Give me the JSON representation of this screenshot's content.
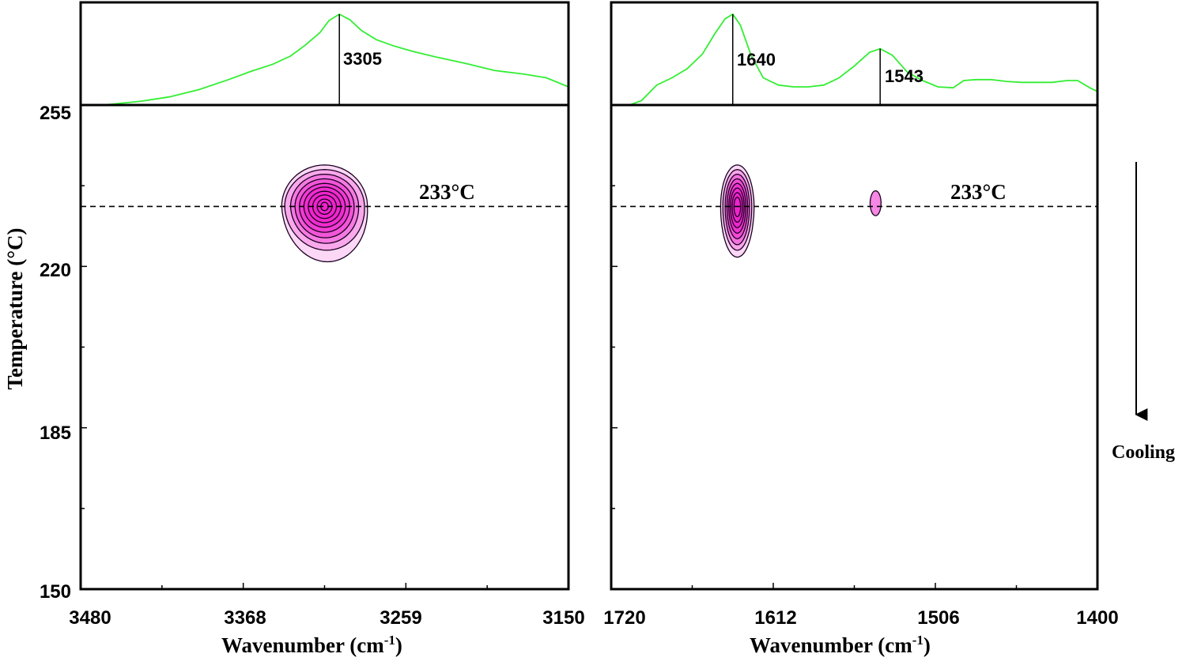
{
  "chart_data": [
    {
      "type": "contour",
      "panel": "left",
      "xlabel": "Wavenumber (cm",
      "xlabel_sup": "-1",
      "xlabel_tail": ")",
      "ylabel": "Temperature  (°C)",
      "xlim": [
        3480,
        3150
      ],
      "ylim": [
        150,
        255
      ],
      "x_ticks": [
        "3480",
        "3368",
        "3259",
        "3150"
      ],
      "y_ticks": [
        "255",
        "220",
        "185",
        "150"
      ],
      "spectrum_color": "#33ee33",
      "spectrum": {
        "x": [
          3465,
          3440,
          3420,
          3400,
          3380,
          3365,
          3350,
          3338,
          3328,
          3318,
          3312,
          3305,
          3298,
          3290,
          3280,
          3268,
          3255,
          3240,
          3220,
          3200,
          3180,
          3165,
          3150
        ],
        "y": [
          0.0,
          0.04,
          0.09,
          0.17,
          0.28,
          0.37,
          0.45,
          0.54,
          0.66,
          0.8,
          0.93,
          1.0,
          0.94,
          0.82,
          0.72,
          0.65,
          0.59,
          0.53,
          0.46,
          0.38,
          0.34,
          0.3,
          0.2
        ]
      },
      "peaks": [
        {
          "x": 3305,
          "label": "3305"
        }
      ],
      "reference_line": {
        "y": 233,
        "label": "233°C"
      },
      "contour": {
        "center": [
          3315,
          233
        ],
        "color": "#ee22cc",
        "levels": [
          {
            "rx": 29,
            "ry_up": 9.0,
            "ry_down": 12.0,
            "skew": -4
          },
          {
            "rx": 27,
            "ry_up": 8.0,
            "ry_down": 9.5,
            "skew": -3
          },
          {
            "rx": 23,
            "ry_up": 7.0,
            "ry_down": 8.0,
            "skew": -2
          },
          {
            "rx": 20,
            "ry_up": 6.0,
            "ry_down": 6.8,
            "skew": -1
          },
          {
            "rx": 17,
            "ry_up": 5.0,
            "ry_down": 5.6,
            "skew": 0
          },
          {
            "rx": 14,
            "ry_up": 4.2,
            "ry_down": 4.5,
            "skew": 0
          },
          {
            "rx": 11,
            "ry_up": 3.3,
            "ry_down": 3.5,
            "skew": 0
          },
          {
            "rx": 8,
            "ry_up": 2.5,
            "ry_down": 2.6,
            "skew": 0
          },
          {
            "rx": 5,
            "ry_up": 1.6,
            "ry_down": 1.7,
            "skew": 0
          },
          {
            "rx": 2.5,
            "ry_up": 0.9,
            "ry_down": 0.9,
            "skew": 0
          }
        ]
      }
    },
    {
      "type": "contour",
      "panel": "right",
      "xlabel": "Wavenumber (cm",
      "xlabel_sup": "-1",
      "xlabel_tail": ")",
      "xlim": [
        1720,
        1400
      ],
      "ylim": [
        150,
        255
      ],
      "x_ticks": [
        "1720",
        "1612",
        "1506",
        "1400"
      ],
      "spectrum_color": "#33ee33",
      "spectrum": {
        "x": [
          1708,
          1700,
          1690,
          1680,
          1670,
          1660,
          1652,
          1645,
          1640,
          1635,
          1628,
          1620,
          1610,
          1600,
          1590,
          1580,
          1570,
          1560,
          1550,
          1543,
          1535,
          1525,
          1515,
          1505,
          1495,
          1488,
          1480,
          1470,
          1460,
          1450,
          1440,
          1430,
          1420,
          1413,
          1405,
          1400
        ],
        "y": [
          0.0,
          0.05,
          0.22,
          0.3,
          0.4,
          0.56,
          0.78,
          0.95,
          1.0,
          0.88,
          0.55,
          0.3,
          0.22,
          0.2,
          0.2,
          0.22,
          0.3,
          0.43,
          0.58,
          0.62,
          0.55,
          0.36,
          0.27,
          0.2,
          0.19,
          0.27,
          0.28,
          0.28,
          0.26,
          0.25,
          0.25,
          0.25,
          0.27,
          0.27,
          0.19,
          0.15
        ]
      },
      "peaks": [
        {
          "x": 1640,
          "label": "1640"
        },
        {
          "x": 1543,
          "label": "1543"
        }
      ],
      "reference_line": {
        "y": 233,
        "label": "233°C"
      },
      "contours": [
        {
          "center": [
            1637,
            233
          ],
          "color": "#ee22cc",
          "levels": [
            {
              "rx": 11,
              "ry_up": 9.0,
              "ry_down": 11.0,
              "skew": 0
            },
            {
              "rx": 9.5,
              "ry_up": 8.0,
              "ry_down": 9.5,
              "skew": 0
            },
            {
              "rx": 8,
              "ry_up": 7.0,
              "ry_down": 8.3,
              "skew": 0
            },
            {
              "rx": 6.8,
              "ry_up": 6.0,
              "ry_down": 7.0,
              "skew": 0
            },
            {
              "rx": 5.6,
              "ry_up": 5.0,
              "ry_down": 5.8,
              "skew": 0
            },
            {
              "rx": 4.5,
              "ry_up": 4.0,
              "ry_down": 4.6,
              "skew": 0
            },
            {
              "rx": 3.4,
              "ry_up": 3.0,
              "ry_down": 3.4,
              "skew": 0
            },
            {
              "rx": 2.2,
              "ry_up": 2.0,
              "ry_down": 2.2,
              "skew": 0
            }
          ]
        },
        {
          "center": [
            1546,
            233.7
          ],
          "color": "#ee22cc",
          "levels": [
            {
              "rx": 3.6,
              "ry_up": 2.7,
              "ry_down": 2.7,
              "skew": 0
            }
          ]
        }
      ]
    }
  ],
  "annotation": {
    "label": "Cooling"
  }
}
